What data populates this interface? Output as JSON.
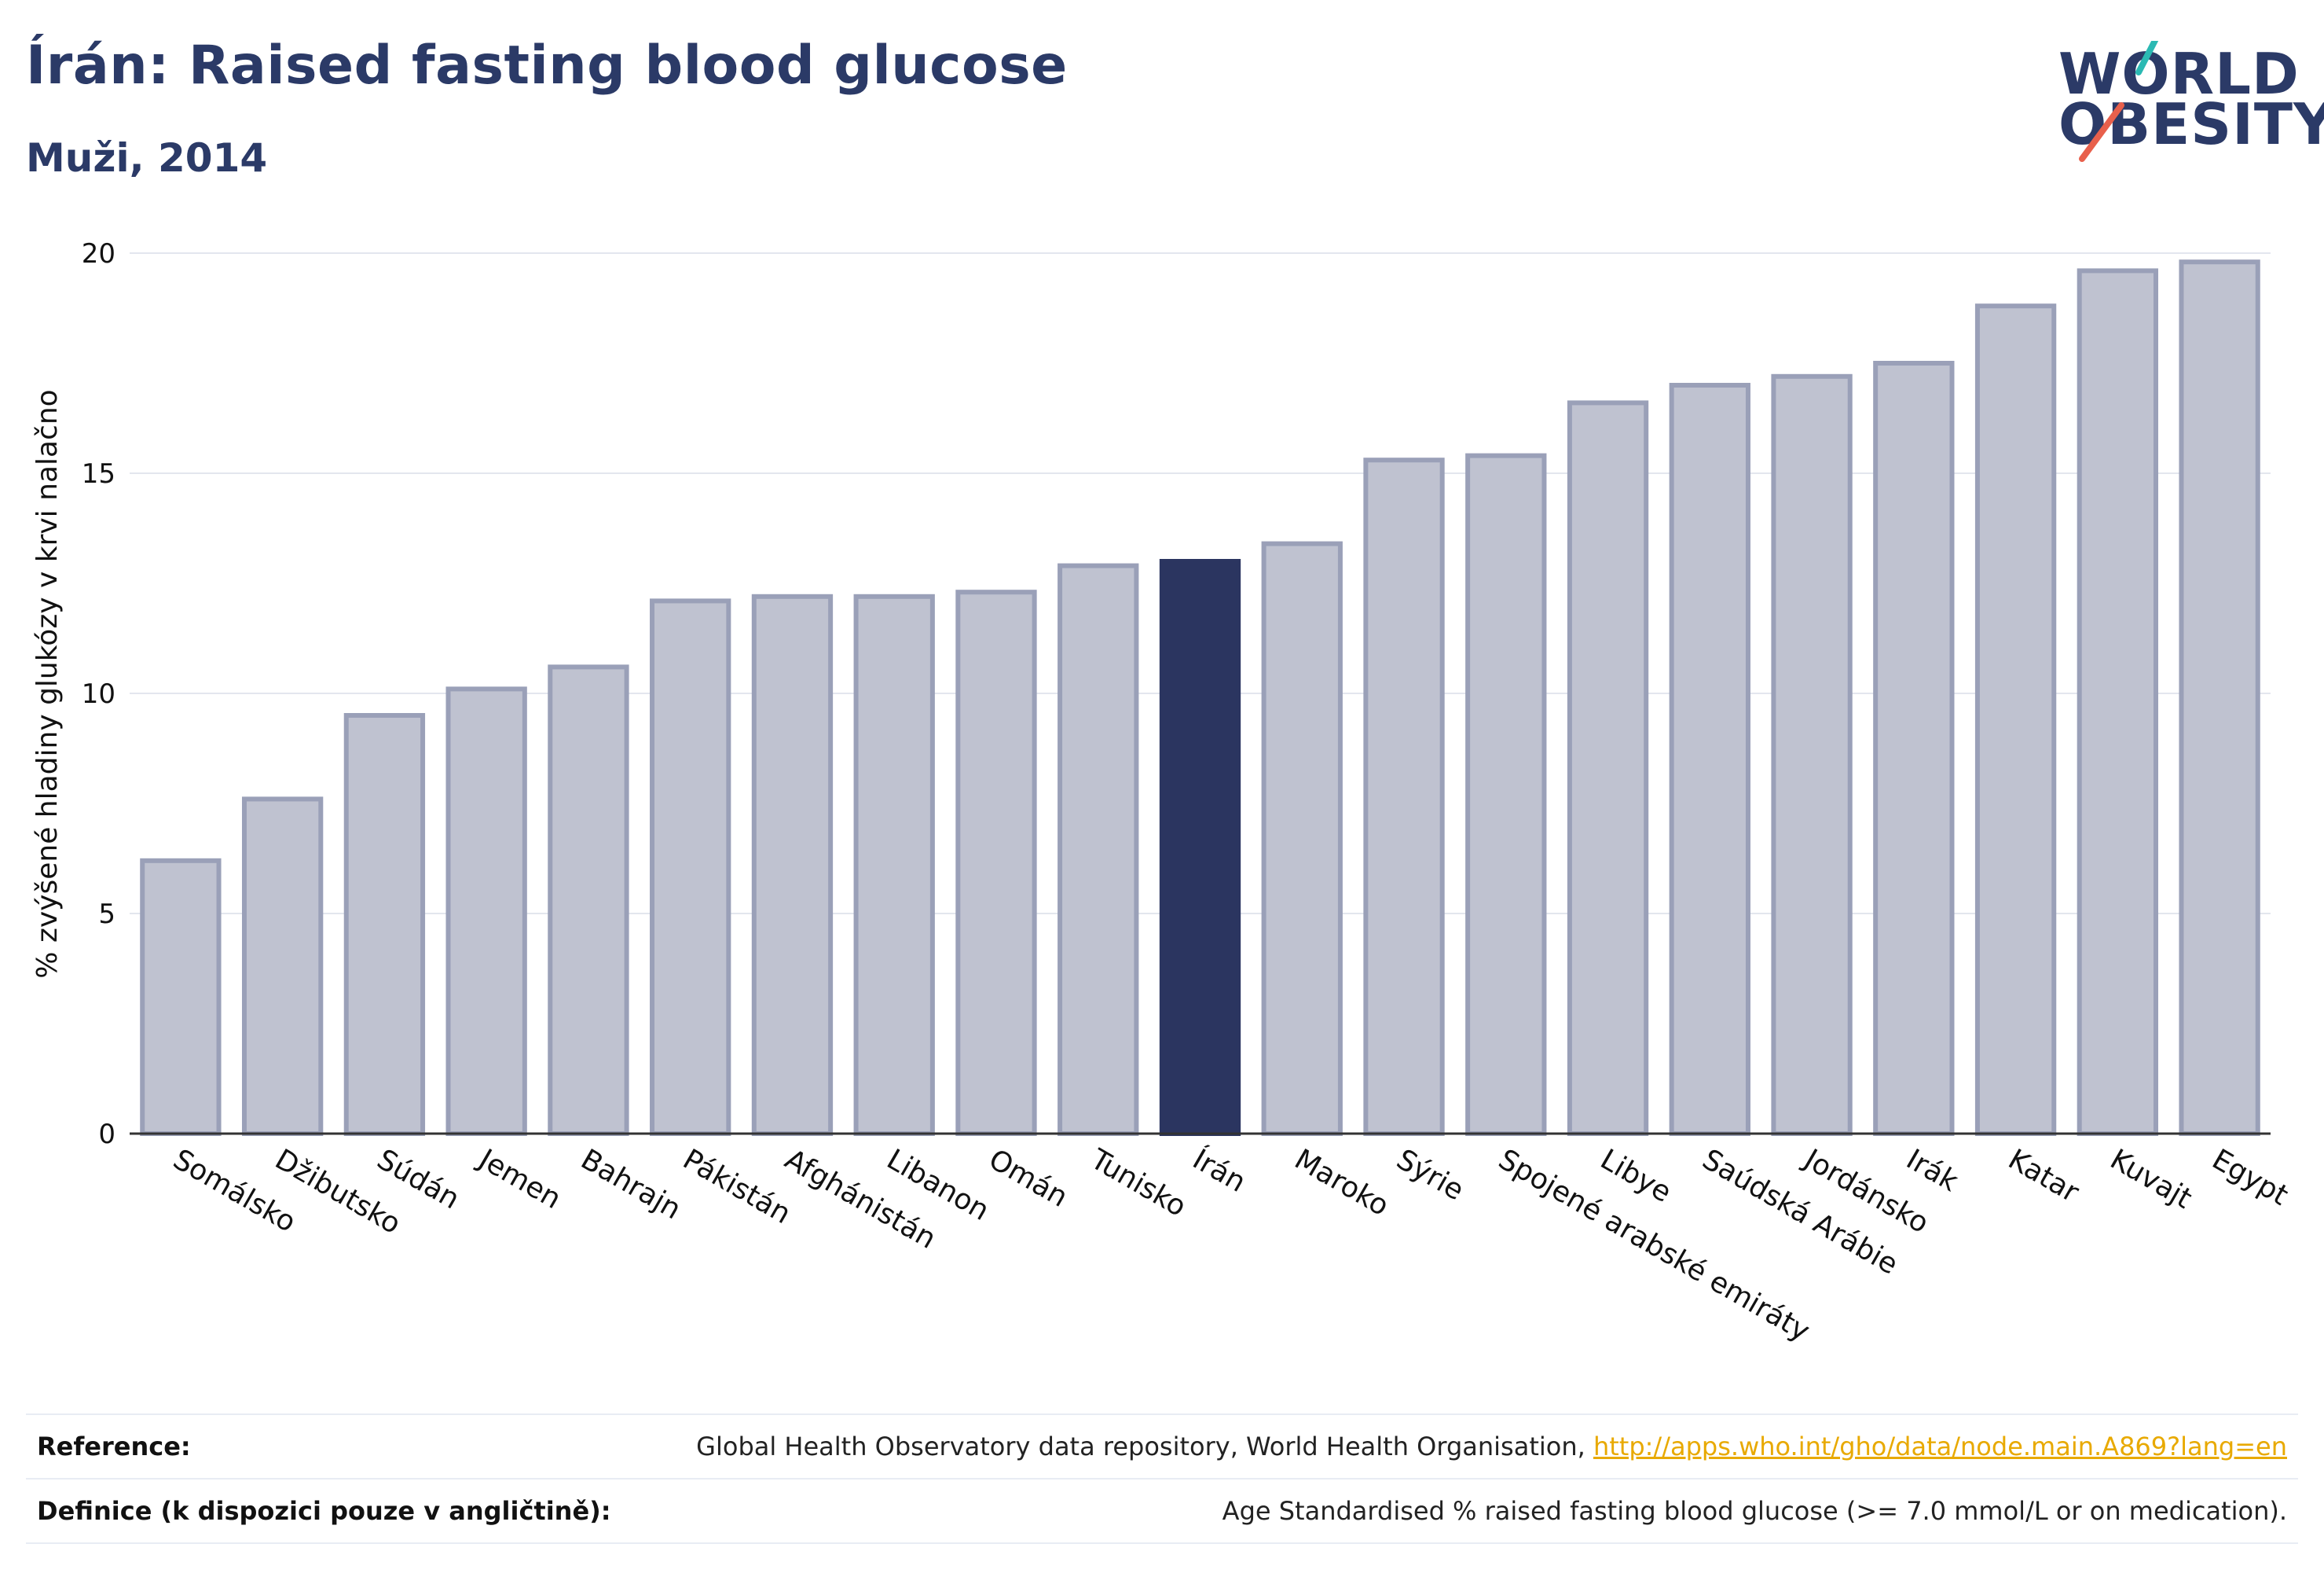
{
  "header": {
    "title": "Írán: Raised fasting blood glucose",
    "subtitle": "Muži, 2014"
  },
  "logo": {
    "line1": "WORLD",
    "line2": "OBESITY",
    "accent_teal": "#2bb9b3",
    "accent_red": "#e8604c"
  },
  "chart_data": {
    "type": "bar",
    "ylabel": "% zvýšené hladiny glukózy v krvi nalačno",
    "ylim": [
      0,
      20
    ],
    "yticks": [
      "0",
      "5",
      "10",
      "15",
      "20"
    ],
    "grid": true,
    "highlight_color": "#2b3560",
    "bar_color": "#bfc2d0",
    "bar_border_color": "#9aa0b8",
    "highlight_category": "Írán",
    "categories": [
      "Somálsko",
      "Džibutsko",
      "Súdán",
      "Jemen",
      "Bahrajn",
      "Pákistán",
      "Afghánistán",
      "Libanon",
      "Omán",
      "Tunisko",
      "Írán",
      "Maroko",
      "Sýrie",
      "Spojené arabské emiráty",
      "Libye",
      "Saúdská Arábie",
      "Jordánsko",
      "Irák",
      "Katar",
      "Kuvajt",
      "Egypt"
    ],
    "values": [
      6.2,
      7.6,
      9.5,
      10.1,
      10.6,
      12.1,
      12.2,
      12.2,
      12.3,
      12.9,
      13.0,
      13.4,
      15.3,
      15.4,
      16.6,
      17.0,
      17.2,
      17.5,
      18.8,
      19.6,
      19.8
    ]
  },
  "footer": {
    "reference_label": "Reference:",
    "reference_text": "Global Health Observatory data repository, World Health Organisation, ",
    "reference_link": "http://apps.who.int/gho/data/node.main.A869?lang=en",
    "definition_label": "Definice (k dispozici pouze v angličtině):",
    "definition_text": "Age Standardised % raised fasting blood glucose (>= 7.0 mmol/L or on medication)."
  }
}
